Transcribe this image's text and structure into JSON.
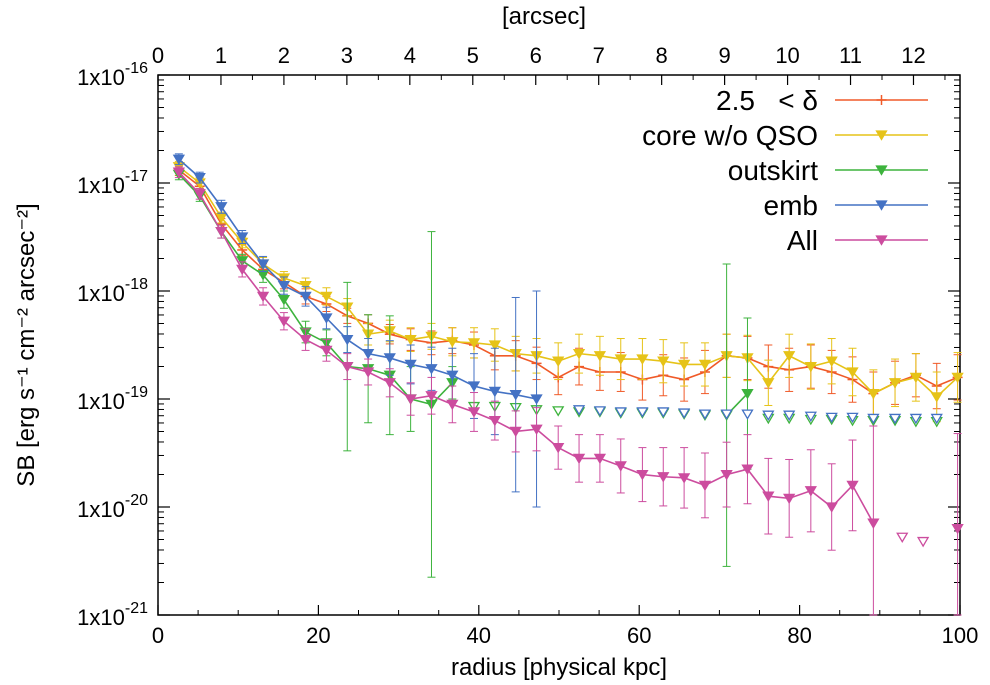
{
  "chart_data": {
    "type": "line",
    "title": "",
    "xlabel": "radius [physical kpc]",
    "ylabel": "SB [erg s⁻¹ cm⁻² arcsec⁻²]",
    "x2label": "[arcsec]",
    "xlim": [
      0,
      100
    ],
    "ylim_log10": [
      -21,
      -16
    ],
    "yscale": "log",
    "x_ticks": [
      0,
      20,
      40,
      60,
      80,
      100
    ],
    "x_tick_labels": [
      "0",
      "20",
      "40",
      "60",
      "80",
      "100"
    ],
    "x2_ticks": [
      0,
      1,
      2,
      3,
      4,
      5,
      6,
      7,
      8,
      9,
      10,
      11,
      12
    ],
    "x2_tick_labels": [
      "0",
      "1",
      "2",
      "3",
      "4",
      "5",
      "6",
      "7",
      "8",
      "9",
      "10",
      "11",
      "12"
    ],
    "x2_kpc_per_arcsec": 7.85,
    "y_ticks_log10": [
      -16,
      -17,
      -18,
      -19,
      -20,
      -21
    ],
    "y_tick_labels": [
      {
        "base": "1x10",
        "exp": "-16"
      },
      {
        "base": "1x10",
        "exp": "-17"
      },
      {
        "base": "1x10",
        "exp": "-18"
      },
      {
        "base": "1x10",
        "exp": "-19"
      },
      {
        "base": "1x10",
        "exp": "-20"
      },
      {
        "base": "1x10",
        "exp": "-21"
      }
    ],
    "legend_position": "top-right",
    "x": [
      2.6,
      5.2,
      7.9,
      10.5,
      13.1,
      15.7,
      18.4,
      21.0,
      23.6,
      26.2,
      28.9,
      31.5,
      34.1,
      36.7,
      39.4,
      42.0,
      44.6,
      47.2,
      49.9,
      52.5,
      55.1,
      57.7,
      60.4,
      63.0,
      65.6,
      68.2,
      70.9,
      73.5,
      76.1,
      78.7,
      81.4,
      84.0,
      86.6,
      89.2,
      91.9,
      94.5,
      97.1,
      99.7
    ],
    "series": [
      {
        "name": "2.5   < δ",
        "color": "#f05a28",
        "marker": "plus",
        "log10_values": [
          -16.88,
          -17.03,
          -17.38,
          -17.62,
          -17.8,
          -17.92,
          -18.05,
          -18.12,
          -18.23,
          -18.3,
          -18.4,
          -18.45,
          -18.48,
          -18.46,
          -18.5,
          -18.6,
          -18.6,
          -18.67,
          -18.8,
          -18.7,
          -18.75,
          -18.75,
          -18.82,
          -18.78,
          -18.82,
          -18.75,
          -18.6,
          -18.62,
          -18.7,
          -18.73,
          -18.7,
          -18.75,
          -18.82,
          -18.95,
          -18.85,
          -18.78,
          -18.88,
          -18.8
        ],
        "error": [
          0.05,
          0.05,
          0.05,
          0.05,
          0.05,
          0.06,
          0.07,
          0.07,
          0.07,
          0.08,
          0.09,
          0.1,
          0.11,
          0.12,
          0.12,
          0.13,
          0.14,
          0.15,
          0.16,
          0.17,
          0.17,
          0.18,
          0.19,
          0.19,
          0.2,
          0.2,
          0.2,
          0.2,
          0.2,
          0.2,
          0.2,
          0.2,
          0.21,
          0.2,
          0.2,
          0.2,
          0.21,
          0.21
        ]
      },
      {
        "name": "core w/o QSO",
        "color": "#e6c318",
        "marker": "triangle-down",
        "log10_values": [
          -16.85,
          -17.0,
          -17.32,
          -17.55,
          -17.75,
          -17.88,
          -17.95,
          -18.05,
          -18.15,
          -18.4,
          -18.37,
          -18.45,
          -18.42,
          -18.47,
          -18.48,
          -18.5,
          -18.58,
          -18.6,
          -18.65,
          -18.58,
          -18.6,
          -18.63,
          -18.63,
          -18.65,
          -18.68,
          -18.68,
          -18.6,
          -18.62,
          -18.85,
          -18.6,
          -18.7,
          -18.65,
          -18.75,
          -18.95,
          -18.85,
          -18.8,
          -18.98,
          -18.8
        ],
        "error": [
          0.05,
          0.05,
          0.05,
          0.05,
          0.06,
          0.06,
          0.07,
          0.08,
          0.08,
          0.1,
          0.1,
          0.11,
          0.12,
          0.13,
          0.14,
          0.15,
          0.16,
          0.16,
          0.17,
          0.18,
          0.18,
          0.19,
          0.19,
          0.2,
          0.2,
          0.2,
          0.2,
          0.21,
          0.21,
          0.2,
          0.21,
          0.21,
          0.22,
          0.22,
          0.22,
          0.22,
          0.23,
          0.23
        ]
      },
      {
        "name": "outskirt",
        "color": "#3db33d",
        "marker": "triangle-down",
        "log10_values": [
          -16.92,
          -17.12,
          -17.45,
          -17.72,
          -17.85,
          -18.08,
          -18.38,
          -18.48,
          -18.7,
          -18.72,
          -18.78,
          -19.0,
          -19.05,
          -18.85,
          null,
          null,
          null,
          null,
          null,
          null,
          null,
          null,
          null,
          null,
          null,
          null,
          -19.15,
          -18.95
        ],
        "error": [
          0.05,
          0.05,
          0.06,
          0.06,
          0.07,
          0.08,
          0.1,
          0.12,
          0.78,
          0.5,
          0.55,
          0.3,
          1.6,
          0.15,
          null,
          null,
          null,
          null,
          null,
          null,
          null,
          null,
          null,
          null,
          null,
          null,
          1.4,
          0.7
        ],
        "upper_limits": [
          {
            "x": 39.4,
            "log10_value": -19.07
          },
          {
            "x": 42.0,
            "log10_value": -19.07
          },
          {
            "x": 44.6,
            "log10_value": -19.08
          },
          {
            "x": 47.2,
            "log10_value": -19.1
          },
          {
            "x": 49.9,
            "log10_value": -19.11
          },
          {
            "x": 52.5,
            "log10_value": -19.12
          },
          {
            "x": 55.1,
            "log10_value": -19.12
          },
          {
            "x": 57.7,
            "log10_value": -19.13
          },
          {
            "x": 60.4,
            "log10_value": -19.13
          },
          {
            "x": 63.0,
            "log10_value": -19.13
          },
          {
            "x": 65.6,
            "log10_value": -19.14
          },
          {
            "x": 68.2,
            "log10_value": -19.15
          },
          {
            "x": 76.1,
            "log10_value": -19.18
          },
          {
            "x": 78.7,
            "log10_value": -19.18
          },
          {
            "x": 81.4,
            "log10_value": -19.19
          },
          {
            "x": 84.0,
            "log10_value": -19.19
          },
          {
            "x": 86.6,
            "log10_value": -19.2
          },
          {
            "x": 89.2,
            "log10_value": -19.2
          },
          {
            "x": 91.9,
            "log10_value": -19.2
          },
          {
            "x": 94.5,
            "log10_value": -19.21
          },
          {
            "x": 97.1,
            "log10_value": -19.21
          }
        ]
      },
      {
        "name": "emb",
        "color": "#4472c4",
        "marker": "triangle-down",
        "log10_values": [
          -16.78,
          -16.95,
          -17.22,
          -17.5,
          -17.75,
          -17.95,
          -18.05,
          -18.25,
          -18.45,
          -18.58,
          -18.62,
          -18.68,
          -18.72,
          -18.78,
          -18.88,
          -18.93,
          -18.96,
          -19.0
        ],
        "error": [
          0.05,
          0.05,
          0.06,
          0.06,
          0.07,
          0.08,
          0.09,
          0.1,
          0.12,
          0.14,
          0.16,
          0.18,
          0.2,
          0.25,
          0.3,
          0.4,
          0.9,
          1.0
        ],
        "upper_limits": [
          {
            "x": 52.5,
            "log10_value": -19.1
          },
          {
            "x": 55.1,
            "log10_value": -19.11
          },
          {
            "x": 57.7,
            "log10_value": -19.12
          },
          {
            "x": 60.4,
            "log10_value": -19.12
          },
          {
            "x": 63.0,
            "log10_value": -19.12
          },
          {
            "x": 65.6,
            "log10_value": -19.13
          },
          {
            "x": 68.2,
            "log10_value": -19.14
          },
          {
            "x": 70.9,
            "log10_value": -19.14
          },
          {
            "x": 73.5,
            "log10_value": -19.14
          },
          {
            "x": 76.1,
            "log10_value": -19.15
          },
          {
            "x": 78.7,
            "log10_value": -19.15
          },
          {
            "x": 81.4,
            "log10_value": -19.16
          },
          {
            "x": 84.0,
            "log10_value": -19.17
          },
          {
            "x": 86.6,
            "log10_value": -19.17
          },
          {
            "x": 89.2,
            "log10_value": -19.18
          },
          {
            "x": 91.9,
            "log10_value": -19.18
          },
          {
            "x": 94.5,
            "log10_value": -19.18
          },
          {
            "x": 97.1,
            "log10_value": -19.18
          }
        ]
      },
      {
        "name": "All",
        "color": "#cc4c9e",
        "marker": "triangle-down",
        "log10_values": [
          -16.9,
          -17.1,
          -17.45,
          -17.8,
          -18.05,
          -18.28,
          -18.45,
          -18.55,
          -18.7,
          -18.75,
          -18.85,
          -19.0,
          -18.97,
          -19.05,
          -19.12,
          -19.2,
          -19.3,
          -19.28,
          -19.45,
          -19.55,
          -19.55,
          -19.62,
          -19.7,
          -19.72,
          -19.73,
          -19.8,
          -19.7,
          -19.65,
          -19.9,
          -19.92,
          -19.85,
          -20.0,
          -19.8,
          -20.15,
          null,
          null,
          null,
          -20.2
        ],
        "error": [
          0.05,
          0.05,
          0.06,
          0.07,
          0.08,
          0.08,
          0.1,
          0.1,
          0.12,
          0.12,
          0.13,
          0.15,
          0.17,
          0.17,
          0.18,
          0.18,
          0.19,
          0.2,
          0.2,
          0.22,
          0.22,
          0.25,
          0.25,
          0.27,
          0.28,
          0.3,
          0.3,
          0.32,
          0.35,
          0.36,
          0.38,
          0.4,
          0.42,
          0.9,
          null,
          null,
          null,
          0.88
        ],
        "upper_limits": [
          {
            "x": 92.8,
            "log10_value": -20.28
          },
          {
            "x": 95.4,
            "log10_value": -20.32
          }
        ]
      }
    ]
  }
}
